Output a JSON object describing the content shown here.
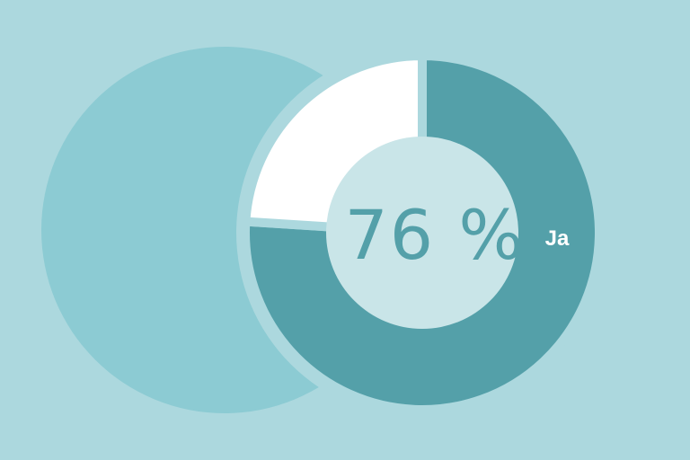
{
  "chart_data": {
    "type": "pie",
    "variant": "donut",
    "center_label": "76 %",
    "slices": [
      {
        "label": "Ja",
        "value": 76,
        "color": "#54a0a9"
      },
      {
        "value": 24,
        "color": "#ffffff"
      }
    ],
    "colors": {
      "background": "#acd8de",
      "backdrop_circle": "#8ccbd3",
      "center": "#c9e5e8"
    }
  }
}
